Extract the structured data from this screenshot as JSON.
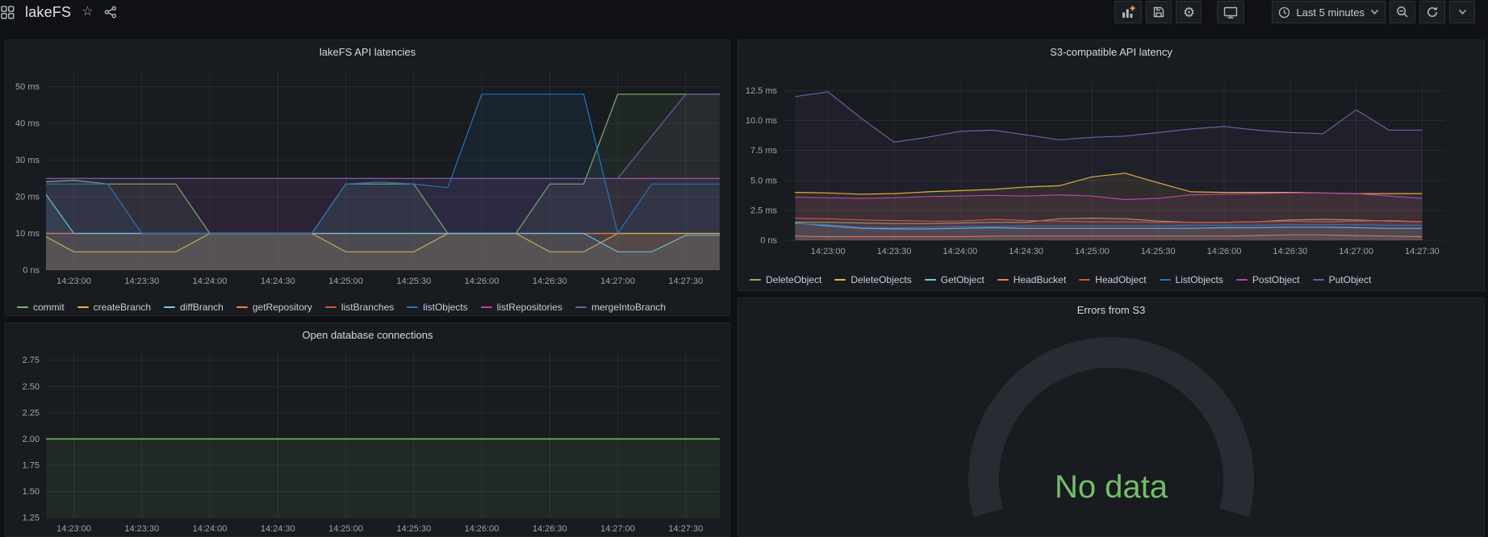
{
  "header": {
    "title": "lakeFS",
    "time_picker_label": "Last 5 minutes",
    "left_icons": [
      "apps-icon",
      "star-icon",
      "share-icon"
    ],
    "right_icons": [
      "add-panel-icon",
      "save-icon",
      "gear-icon",
      "monitor-icon",
      "clock-icon",
      "caret-down-icon",
      "zoom-out-icon",
      "refresh-icon",
      "caret-down-icon"
    ],
    "accent_plus_color": "#ff9830"
  },
  "chart_data": [
    {
      "id": "chart-api",
      "type": "line",
      "title": "lakeFS API latencies",
      "ylabel": "latency",
      "unit": "ms",
      "x_count": 21,
      "x_tick_indices": [
        1,
        3,
        5,
        7,
        9,
        11,
        13,
        15,
        17,
        19
      ],
      "x_tick_labels": [
        "14:23:00",
        "14:23:30",
        "14:24:00",
        "14:24:30",
        "14:25:00",
        "14:25:30",
        "14:26:00",
        "14:26:30",
        "14:27:00",
        "14:27:30"
      ],
      "ylim": [
        0,
        55
      ],
      "yticks": [
        {
          "value": 0,
          "label": "0 ns"
        },
        {
          "value": 10,
          "label": "10 ms"
        },
        {
          "value": 20,
          "label": "20 ms"
        },
        {
          "value": 30,
          "label": "30 ms"
        },
        {
          "value": 40,
          "label": "40 ms"
        },
        {
          "value": 50,
          "label": "50 ms"
        }
      ],
      "legend_position": "bottom",
      "series": [
        {
          "name": "commit",
          "color": "#7EB26D",
          "values": [
            24,
            24.5,
            23.5,
            23.5,
            23.5,
            10,
            10,
            10,
            10,
            23.5,
            23.5,
            23.5,
            10,
            10,
            10,
            23.5,
            23.5,
            48,
            48,
            48,
            48
          ]
        },
        {
          "name": "createBranch",
          "color": "#EAB839",
          "values": [
            10,
            5,
            5,
            5,
            5,
            10,
            10,
            10,
            10,
            5,
            5,
            5,
            10,
            10,
            10,
            5,
            5,
            10,
            10,
            10,
            10
          ]
        },
        {
          "name": "diffBranch",
          "color": "#6ED0E0",
          "values": [
            23,
            10,
            10,
            10,
            10,
            10,
            10,
            10,
            10,
            10,
            10,
            10,
            10,
            10,
            10,
            10,
            10,
            5,
            5,
            9.5,
            9.5
          ]
        },
        {
          "name": "getRepository",
          "color": "#EF843C",
          "z": 0.5,
          "values": [
            10,
            10,
            10,
            10,
            10,
            10,
            10,
            10,
            10,
            10,
            10,
            10,
            10,
            10,
            10,
            10,
            10,
            10,
            10,
            10,
            10
          ]
        },
        {
          "name": "listBranches",
          "color": "#E24D42",
          "z": 0,
          "values": [
            10,
            10,
            10,
            10,
            10,
            10,
            10,
            10,
            10,
            10,
            10,
            10,
            10,
            10,
            10,
            10,
            10,
            10,
            10,
            10,
            10
          ]
        },
        {
          "name": "listObjects",
          "color": "#1F78C1",
          "values": [
            23.5,
            23.5,
            23.5,
            10,
            10,
            10,
            10,
            10,
            10,
            23.5,
            24,
            23.5,
            22.5,
            48,
            48,
            48,
            48,
            10,
            23.5,
            23.5,
            23.5
          ]
        },
        {
          "name": "listRepositories",
          "color": "#BA43A9",
          "z": 0,
          "values": [
            25,
            25,
            25,
            25,
            25,
            25,
            25,
            25,
            25,
            25,
            25,
            25,
            25,
            25,
            25,
            25,
            25,
            25,
            25,
            25,
            25
          ]
        },
        {
          "name": "mergeIntoBranch",
          "color": "#705DA0",
          "values": [
            25,
            25,
            25,
            25,
            25,
            25,
            25,
            25,
            25,
            25,
            25,
            25,
            25,
            25,
            25,
            25,
            25,
            25,
            36.5,
            48,
            48
          ]
        }
      ]
    },
    {
      "id": "chart-s3",
      "type": "line",
      "title": "S3-compatible API latency",
      "ylabel": "latency",
      "unit": "ms",
      "x_count": 20,
      "x_tick_indices": [
        1,
        3,
        5,
        7,
        9,
        11,
        13,
        15,
        17,
        19
      ],
      "x_tick_labels": [
        "14:23:00",
        "14:23:30",
        "14:24:00",
        "14:24:30",
        "14:25:00",
        "14:25:30",
        "14:26:00",
        "14:26:30",
        "14:27:00",
        "14:27:30"
      ],
      "ylim": [
        0,
        13.2
      ],
      "yticks": [
        {
          "value": 0,
          "label": "0 ns"
        },
        {
          "value": 2.5,
          "label": "2.5 ms"
        },
        {
          "value": 5,
          "label": "5.0 ms"
        },
        {
          "value": 7.5,
          "label": "7.5 ms"
        },
        {
          "value": 10,
          "label": "10.0 ms"
        },
        {
          "value": 12.5,
          "label": "12.5 ms"
        }
      ],
      "legend_position": "bottom",
      "series": [
        {
          "name": "DeleteObject",
          "color": "#7EB26D",
          "values": [
            1.5,
            1.5,
            1.45,
            1.4,
            1.4,
            1.45,
            1.5,
            1.5,
            1.8,
            1.85,
            1.8,
            1.6,
            1.5,
            1.5,
            1.55,
            1.7,
            1.75,
            1.7,
            1.6,
            1.55
          ]
        },
        {
          "name": "DeleteObjects",
          "color": "#EAB839",
          "values": [
            4,
            3.95,
            3.85,
            3.9,
            4.05,
            4.15,
            4.25,
            4.45,
            4.55,
            5.3,
            5.6,
            4.8,
            4.05,
            4,
            4,
            4,
            3.95,
            3.9,
            3.9,
            3.9
          ]
        },
        {
          "name": "GetObject",
          "color": "#6ED0E0",
          "values": [
            1.45,
            1.2,
            1,
            0.95,
            0.95,
            1,
            1.05,
            1,
            1,
            1,
            1,
            1,
            1,
            1.05,
            1.05,
            1.1,
            1.1,
            1.05,
            1,
            1
          ]
        },
        {
          "name": "HeadBucket",
          "color": "#EF843C",
          "values": [
            0.35,
            0.3,
            0.3,
            0.3,
            0.3,
            0.3,
            0.35,
            0.35,
            0.35,
            0.35,
            0.35,
            0.35,
            0.35,
            0.35,
            0.4,
            0.45,
            0.45,
            0.4,
            0.35,
            0.3
          ]
        },
        {
          "name": "HeadObject",
          "color": "#E24D42",
          "values": [
            1.85,
            1.8,
            1.7,
            1.65,
            1.6,
            1.6,
            1.75,
            1.65,
            1.6,
            1.55,
            1.55,
            1.5,
            1.5,
            1.5,
            1.55,
            1.6,
            1.55,
            1.6,
            1.65,
            1.55
          ]
        },
        {
          "name": "ListObjects",
          "color": "#1F78C1",
          "values": [
            1.4,
            1.3,
            1.1,
            1.05,
            1.1,
            1.15,
            1.15,
            1.2,
            1.2,
            1.2,
            1.2,
            1.2,
            1.25,
            1.25,
            1.25,
            1.3,
            1.3,
            1.3,
            1.25,
            1.25
          ]
        },
        {
          "name": "PostObject",
          "color": "#BA43A9",
          "values": [
            3.6,
            3.55,
            3.5,
            3.55,
            3.65,
            3.7,
            3.75,
            3.7,
            3.8,
            3.7,
            3.4,
            3.5,
            3.8,
            3.85,
            3.9,
            3.95,
            3.95,
            3.9,
            3.7,
            3.5
          ]
        },
        {
          "name": "PutObject",
          "color": "#705DA0",
          "values": [
            12,
            12.4,
            10.2,
            8.2,
            8.6,
            9.1,
            9.2,
            8.8,
            8.4,
            8.6,
            8.7,
            9,
            9.3,
            9.5,
            9.2,
            9,
            8.9,
            10.9,
            9.2,
            9.2
          ]
        }
      ]
    },
    {
      "id": "chart-db",
      "type": "line",
      "title": "Open database connections",
      "x_count": 21,
      "x_tick_indices": [
        1,
        3,
        5,
        7,
        9,
        11,
        13,
        15,
        17,
        19
      ],
      "x_tick_labels": [
        "14:23:00",
        "14:23:30",
        "14:24:00",
        "14:24:30",
        "14:25:00",
        "14:25:30",
        "14:26:00",
        "14:26:30",
        "14:27:00",
        "14:27:30"
      ],
      "ylim": [
        1.25,
        2.84
      ],
      "yticks": [
        {
          "value": 1.25,
          "label": "1.25"
        },
        {
          "value": 1.5,
          "label": "1.50"
        },
        {
          "value": 1.75,
          "label": "1.75"
        },
        {
          "value": 2,
          "label": "2.00"
        },
        {
          "value": 2.25,
          "label": "2.25"
        },
        {
          "value": 2.5,
          "label": "2.50"
        },
        {
          "value": 2.75,
          "label": "2.75"
        }
      ],
      "legend_position": "none",
      "series": [
        {
          "name": "",
          "color": "#73bf69",
          "values": [
            2,
            2,
            2,
            2,
            2,
            2,
            2,
            2,
            2,
            2,
            2,
            2,
            2,
            2,
            2,
            2,
            2,
            2,
            2,
            2,
            2
          ]
        }
      ]
    },
    {
      "id": "gauge-errors",
      "type": "gauge",
      "title": "Errors from S3",
      "display": "No data",
      "value": null,
      "arc_color": "#282c32",
      "text_color": "#73bf69"
    }
  ]
}
